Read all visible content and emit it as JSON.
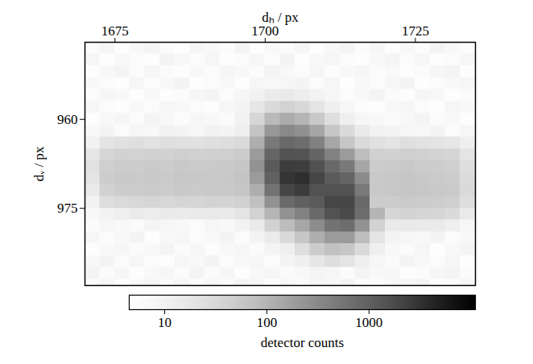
{
  "chart_data": {
    "type": "heatmap",
    "x_label": "dₕ / px",
    "y_label": "dᵥ / px",
    "x": [
      1671.25,
      1673.75,
      1676.25,
      1678.75,
      1681.25,
      1683.75,
      1686.25,
      1688.75,
      1691.25,
      1693.75,
      1696.25,
      1698.75,
      1701.25,
      1703.75,
      1706.25,
      1708.75,
      1711.25,
      1713.75,
      1716.25,
      1718.75,
      1721.25,
      1723.75,
      1726.25,
      1728.75,
      1731.25,
      1733.75
    ],
    "y": [
      948,
      950,
      952,
      954,
      956,
      958,
      960,
      962,
      964,
      966,
      968,
      970,
      972,
      974,
      976,
      978,
      980,
      982,
      984,
      986,
      988
    ],
    "values": [
      [
        6,
        8,
        5,
        7,
        9,
        6,
        5,
        8,
        7,
        6,
        9,
        5,
        7,
        6,
        8,
        5,
        7,
        9,
        6,
        8,
        5,
        7,
        6,
        9,
        7,
        6
      ],
      [
        8,
        5,
        7,
        6,
        5,
        9,
        7,
        6,
        8,
        5,
        6,
        8,
        6,
        9,
        5,
        7,
        8,
        6,
        5,
        7,
        9,
        6,
        8,
        5,
        6,
        8
      ],
      [
        5,
        7,
        9,
        6,
        8,
        6,
        5,
        7,
        6,
        8,
        7,
        6,
        9,
        7,
        6,
        8,
        5,
        7,
        8,
        6,
        7,
        5,
        6,
        8,
        9,
        5
      ],
      [
        7,
        6,
        5,
        8,
        6,
        7,
        9,
        5,
        6,
        7,
        5,
        8,
        7,
        8,
        9,
        6,
        8,
        5,
        7,
        6,
        8,
        9,
        5,
        6,
        7,
        8
      ],
      [
        6,
        8,
        7,
        5,
        7,
        5,
        6,
        8,
        9,
        6,
        8,
        10,
        14,
        16,
        13,
        10,
        8,
        6,
        7,
        9,
        6,
        5,
        8,
        7,
        5,
        6
      ],
      [
        8,
        6,
        5,
        7,
        6,
        8,
        7,
        6,
        5,
        8,
        9,
        18,
        30,
        40,
        32,
        20,
        12,
        8,
        6,
        5,
        7,
        8,
        6,
        5,
        8,
        7
      ],
      [
        5,
        7,
        8,
        6,
        9,
        7,
        6,
        8,
        7,
        6,
        10,
        35,
        90,
        130,
        100,
        55,
        25,
        12,
        8,
        7,
        6,
        7,
        9,
        6,
        7,
        5
      ],
      [
        7,
        9,
        6,
        8,
        7,
        10,
        9,
        8,
        10,
        9,
        12,
        65,
        220,
        320,
        260,
        150,
        60,
        30,
        15,
        10,
        9,
        8,
        7,
        9,
        6,
        8
      ],
      [
        10,
        20,
        22,
        24,
        21,
        25,
        23,
        22,
        24,
        26,
        30,
        120,
        500,
        800,
        700,
        400,
        150,
        60,
        30,
        22,
        20,
        24,
        21,
        20,
        18,
        12
      ],
      [
        18,
        35,
        40,
        38,
        42,
        40,
        44,
        41,
        43,
        45,
        50,
        200,
        900,
        1500,
        1400,
        900,
        400,
        200,
        80,
        42,
        40,
        44,
        41,
        38,
        36,
        20
      ],
      [
        22,
        45,
        50,
        48,
        52,
        50,
        55,
        51,
        53,
        55,
        60,
        250,
        1200,
        2500,
        2400,
        1500,
        800,
        500,
        150,
        50,
        52,
        55,
        50,
        48,
        45,
        25
      ],
      [
        20,
        48,
        55,
        52,
        55,
        53,
        58,
        56,
        55,
        57,
        65,
        200,
        1000,
        3000,
        3500,
        2000,
        1200,
        900,
        300,
        55,
        58,
        60,
        56,
        52,
        50,
        28
      ],
      [
        15,
        40,
        48,
        50,
        52,
        50,
        54,
        52,
        55,
        55,
        60,
        120,
        600,
        2000,
        2500,
        1500,
        1500,
        1500,
        500,
        55,
        58,
        60,
        58,
        55,
        52,
        30
      ],
      [
        10,
        25,
        30,
        32,
        35,
        33,
        36,
        35,
        38,
        37,
        42,
        70,
        250,
        800,
        1000,
        1200,
        2000,
        2000,
        800,
        50,
        48,
        52,
        50,
        48,
        45,
        25
      ],
      [
        7,
        10,
        12,
        14,
        13,
        15,
        14,
        15,
        16,
        15,
        20,
        40,
        100,
        250,
        400,
        800,
        1500,
        1800,
        700,
        100,
        35,
        38,
        36,
        34,
        30,
        15
      ],
      [
        6,
        8,
        7,
        6,
        9,
        8,
        7,
        6,
        8,
        7,
        10,
        15,
        40,
        80,
        150,
        300,
        600,
        700,
        250,
        40,
        15,
        16,
        15,
        14,
        12,
        8
      ],
      [
        8,
        6,
        7,
        9,
        5,
        7,
        8,
        6,
        7,
        9,
        6,
        9,
        14,
        30,
        60,
        120,
        200,
        200,
        80,
        20,
        9,
        8,
        7,
        9,
        6,
        7
      ],
      [
        5,
        7,
        8,
        6,
        7,
        9,
        6,
        8,
        5,
        7,
        8,
        6,
        9,
        12,
        25,
        50,
        70,
        60,
        30,
        12,
        7,
        6,
        8,
        5,
        7,
        9
      ],
      [
        7,
        9,
        6,
        8,
        6,
        5,
        8,
        7,
        9,
        6,
        7,
        8,
        6,
        9,
        12,
        18,
        25,
        20,
        12,
        8,
        6,
        9,
        7,
        6,
        8,
        5
      ],
      [
        9,
        6,
        8,
        5,
        7,
        8,
        6,
        9,
        6,
        8,
        5,
        7,
        8,
        6,
        7,
        9,
        8,
        6,
        9,
        7,
        8,
        5,
        6,
        8,
        9,
        6
      ],
      [
        6,
        8,
        5,
        7,
        9,
        6,
        8,
        5,
        7,
        6,
        9,
        8,
        5,
        7,
        6,
        8,
        7,
        9,
        5,
        6,
        7,
        8,
        9,
        5,
        6,
        8
      ]
    ],
    "xlim": [
      1670,
      1735
    ],
    "ylim": [
      988,
      947
    ],
    "xticks": [
      1675,
      1700,
      1725
    ],
    "yticks": [
      960,
      975
    ],
    "log": true,
    "colorbar_label": "detector counts",
    "colorbar_lim": [
      4.5,
      11000
    ],
    "colorbar_ticks": [
      10,
      100,
      1000
    ]
  }
}
